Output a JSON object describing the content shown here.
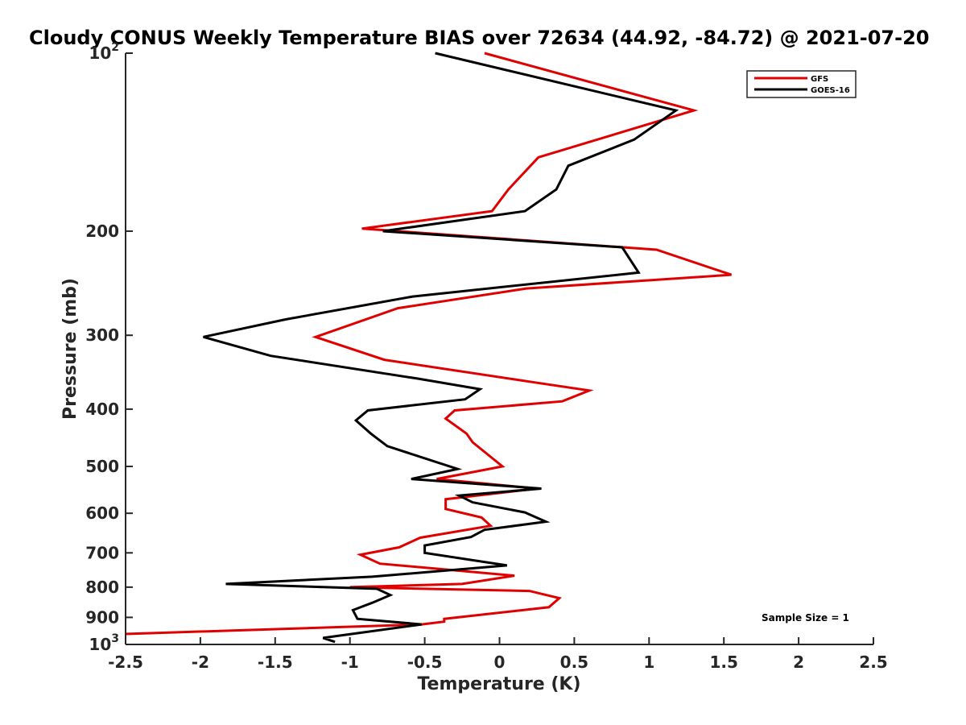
{
  "chart_data": {
    "type": "line",
    "title": "Cloudy CONUS Weekly Temperature BIAS over 72634 (44.92, -84.72) @ 2021-07-20",
    "xlabel": "Temperature (K)",
    "ylabel": "Pressure (mb)",
    "xlim": [
      -2.5,
      2.5
    ],
    "ylim": [
      100,
      1000
    ],
    "y_scale": "log",
    "y_reversed": true,
    "grid": false,
    "legend_position": "top-right",
    "x_ticks": [
      -2.5,
      -2,
      -1.5,
      -1,
      -0.5,
      0,
      0.5,
      1,
      1.5,
      2,
      2.5
    ],
    "x_tick_labels": [
      "-2.5",
      "-2",
      "-1.5",
      "-1",
      "-0.5",
      "0",
      "0.5",
      "1",
      "1.5",
      "2",
      "2.5"
    ],
    "y_ticks": [
      100,
      200,
      300,
      400,
      500,
      600,
      700,
      800,
      900,
      1000
    ],
    "y_tick_labels": [
      {
        "base": "10",
        "exp": "2"
      },
      {
        "base": "200",
        "exp": ""
      },
      {
        "base": "300",
        "exp": ""
      },
      {
        "base": "400",
        "exp": ""
      },
      {
        "base": "500",
        "exp": ""
      },
      {
        "base": "600",
        "exp": ""
      },
      {
        "base": "700",
        "exp": ""
      },
      {
        "base": "800",
        "exp": ""
      },
      {
        "base": "900",
        "exp": ""
      },
      {
        "base": "10",
        "exp": "3"
      }
    ],
    "annotation": "Sample Size = 1",
    "series": [
      {
        "name": "GFS",
        "color": "#e00000",
        "points": [
          [
            -0.1,
            100
          ],
          [
            1.3,
            125
          ],
          [
            0.26,
            150
          ],
          [
            0.06,
            170
          ],
          [
            -0.05,
            185
          ],
          [
            -0.92,
            198
          ],
          [
            1.05,
            215
          ],
          [
            1.55,
            237
          ],
          [
            0.18,
            250
          ],
          [
            -0.68,
            270
          ],
          [
            -1.23,
            302
          ],
          [
            -0.77,
            330
          ],
          [
            0.22,
            360
          ],
          [
            0.6,
            372
          ],
          [
            0.42,
            388
          ],
          [
            -0.3,
            402
          ],
          [
            -0.36,
            415
          ],
          [
            -0.22,
            440
          ],
          [
            -0.18,
            455
          ],
          [
            0.02,
            500
          ],
          [
            -0.42,
            525
          ],
          [
            0.25,
            545
          ],
          [
            -0.36,
            568
          ],
          [
            -0.36,
            590
          ],
          [
            -0.12,
            610
          ],
          [
            -0.06,
            630
          ],
          [
            -0.53,
            660
          ],
          [
            -0.67,
            685
          ],
          [
            -0.93,
            705
          ],
          [
            -0.8,
            730
          ],
          [
            0.1,
            765
          ],
          [
            -0.25,
            790
          ],
          [
            -1.0,
            800
          ],
          [
            0.2,
            812
          ],
          [
            0.4,
            835
          ],
          [
            0.33,
            865
          ],
          [
            -0.37,
            905
          ],
          [
            -0.37,
            915
          ],
          [
            -0.52,
            925
          ],
          [
            -2.5,
            960
          ]
        ]
      },
      {
        "name": "GOES-16",
        "color": "#000000",
        "points": [
          [
            -0.43,
            100
          ],
          [
            1.18,
            125
          ],
          [
            0.9,
            140
          ],
          [
            0.46,
            155
          ],
          [
            0.38,
            170
          ],
          [
            0.17,
            185
          ],
          [
            -0.78,
            200
          ],
          [
            0.82,
            213
          ],
          [
            0.93,
            235
          ],
          [
            -0.58,
            258
          ],
          [
            -1.43,
            282
          ],
          [
            -1.98,
            302
          ],
          [
            -1.53,
            325
          ],
          [
            -0.55,
            355
          ],
          [
            -0.13,
            370
          ],
          [
            -0.23,
            385
          ],
          [
            -0.88,
            402
          ],
          [
            -0.96,
            418
          ],
          [
            -0.86,
            440
          ],
          [
            -0.75,
            462
          ],
          [
            -0.28,
            505
          ],
          [
            -0.59,
            525
          ],
          [
            0.28,
            545
          ],
          [
            -0.27,
            560
          ],
          [
            -0.18,
            575
          ],
          [
            0.17,
            598
          ],
          [
            0.31,
            620
          ],
          [
            -0.1,
            640
          ],
          [
            -0.19,
            658
          ],
          [
            -0.5,
            680
          ],
          [
            -0.5,
            700
          ],
          [
            0.05,
            735
          ],
          [
            -0.85,
            768
          ],
          [
            -1.83,
            790
          ],
          [
            -0.82,
            805
          ],
          [
            -0.73,
            825
          ],
          [
            -0.85,
            850
          ],
          [
            -0.98,
            875
          ],
          [
            -0.95,
            905
          ],
          [
            -0.52,
            925
          ],
          [
            -1.18,
            975
          ],
          [
            -1.1,
            990
          ]
        ]
      }
    ]
  }
}
